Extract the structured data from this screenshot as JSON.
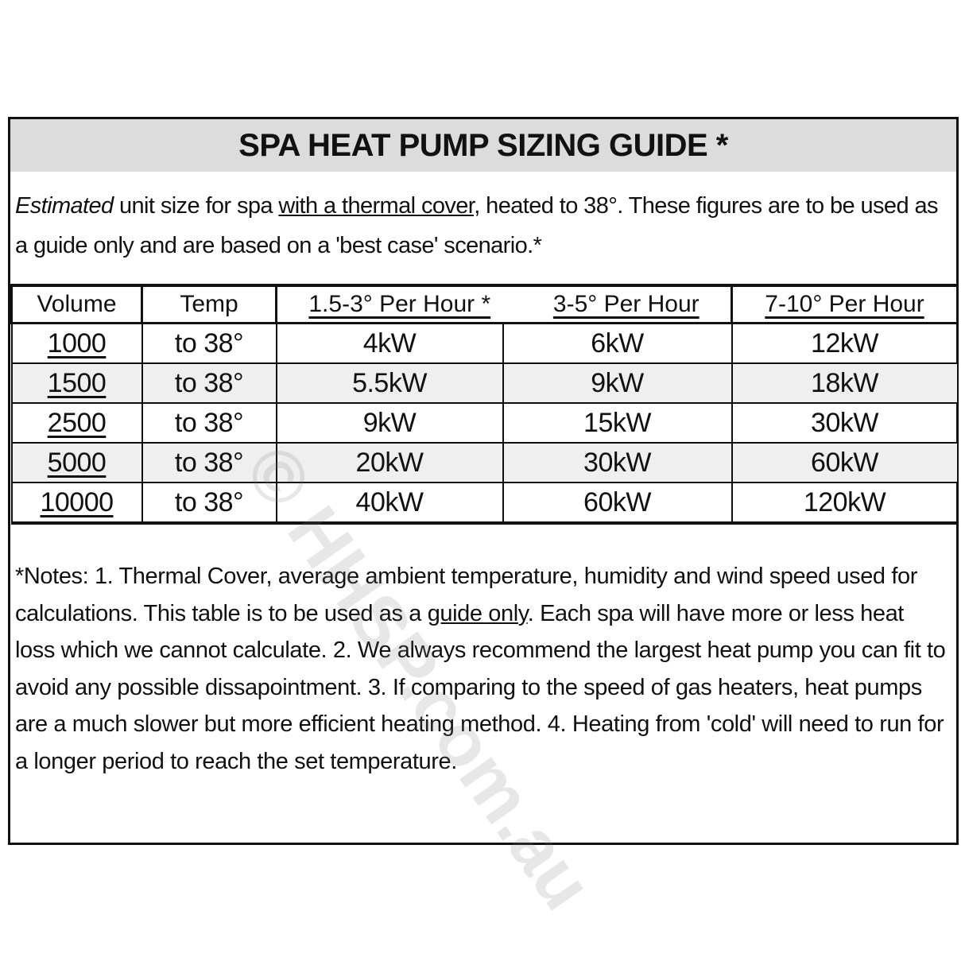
{
  "title": "SPA HEAT PUMP SIZING GUIDE *",
  "intro": {
    "italic": "Estimated",
    "text1": " unit size for spa ",
    "underlined": "with a thermal cover,",
    "text2": " heated to 38°. These figures are to be used as a guide only and are based on a 'best case' scenario.*"
  },
  "table": {
    "headers": [
      "Volume",
      "Temp",
      "1.5-3° Per Hour *",
      "3-5° Per Hour",
      "7-10° Per Hour"
    ],
    "rows": [
      [
        "1000",
        "to 38°",
        "4kW",
        "6kW",
        "12kW"
      ],
      [
        "1500",
        "to 38°",
        "5.5kW",
        "9kW",
        "18kW"
      ],
      [
        "2500",
        "to 38°",
        "9kW",
        "15kW",
        "30kW"
      ],
      [
        "5000",
        "to 38°",
        "20kW",
        "30kW",
        "60kW"
      ],
      [
        "10000",
        "to 38°",
        "40kW",
        "60kW",
        "120kW"
      ]
    ]
  },
  "notes": {
    "text1": "*Notes: 1. Thermal Cover, average ambient temperature, humidity and wind speed used for calculations. This table is to be used as a ",
    "underlined": "guide only",
    "text2": ". Each spa will have more or less heat loss which we cannot calculate. 2. We always recommend the largest heat pump you can fit to avoid any possible dissapointment. 3. If comparing to the speed of gas heaters, heat pumps are a much slower but more efficient heating method. 4. Heating from 'cold' will need to run for a longer period to reach the set temperature."
  },
  "watermark": "© HHSP.com.au"
}
